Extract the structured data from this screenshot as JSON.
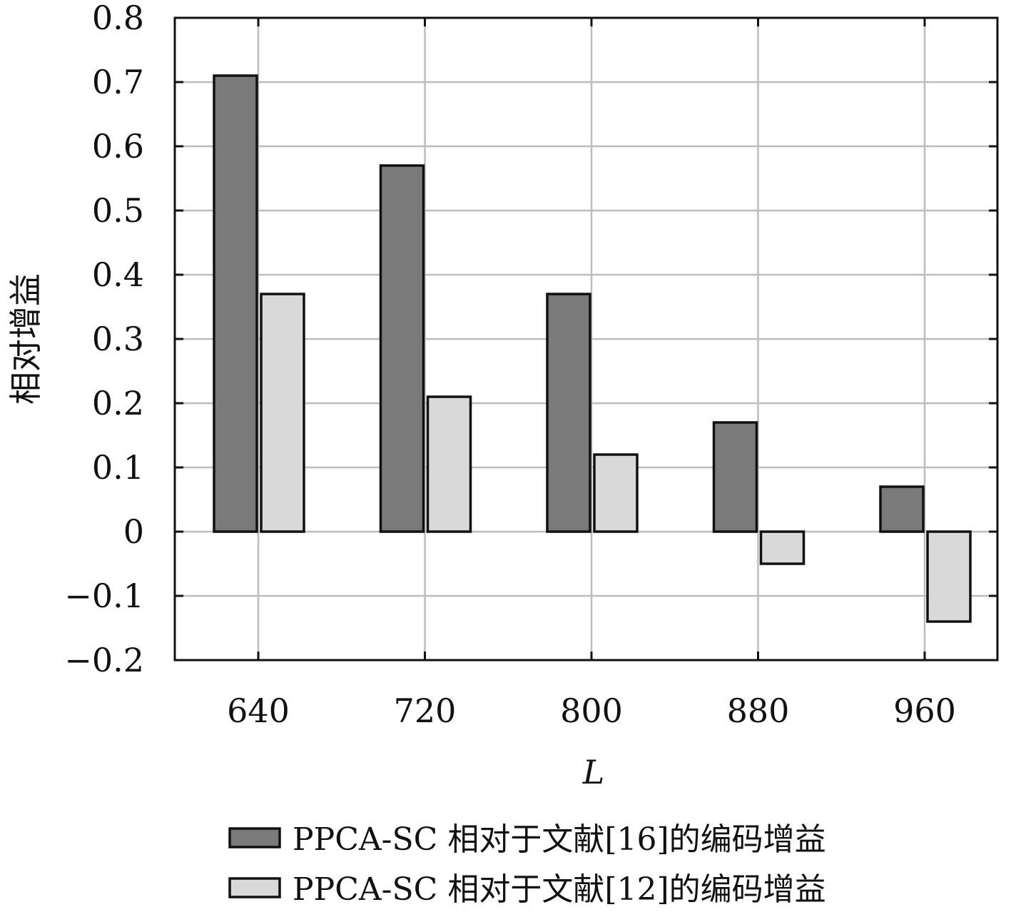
{
  "chart_data": {
    "type": "bar",
    "title": "",
    "xlabel": "L",
    "ylabel": "相对增益",
    "categories": [
      "640",
      "720",
      "800",
      "880",
      "960"
    ],
    "series": [
      {
        "name": "PPCA-SC 相对于文献[16]的编码增益",
        "values": [
          0.71,
          0.57,
          0.37,
          0.17,
          0.07
        ],
        "color": "#7a7a7a"
      },
      {
        "name": "PPCA-SC 相对于文献[12]的编码增益",
        "values": [
          0.37,
          0.21,
          0.12,
          -0.05,
          -0.14
        ],
        "color": "#d9d9d9"
      }
    ],
    "ylim": [
      -0.2,
      0.8
    ],
    "yticks": [
      -0.2,
      -0.1,
      0,
      0.1,
      0.2,
      0.3,
      0.4,
      0.5,
      0.6,
      0.7,
      0.8
    ],
    "ytick_labels": [
      "−0.2",
      "−0.1",
      "0",
      "0.1",
      "0.2",
      "0.3",
      "0.4",
      "0.5",
      "0.6",
      "0.7",
      "0.8"
    ],
    "grid": true,
    "legend_position": "bottom"
  }
}
